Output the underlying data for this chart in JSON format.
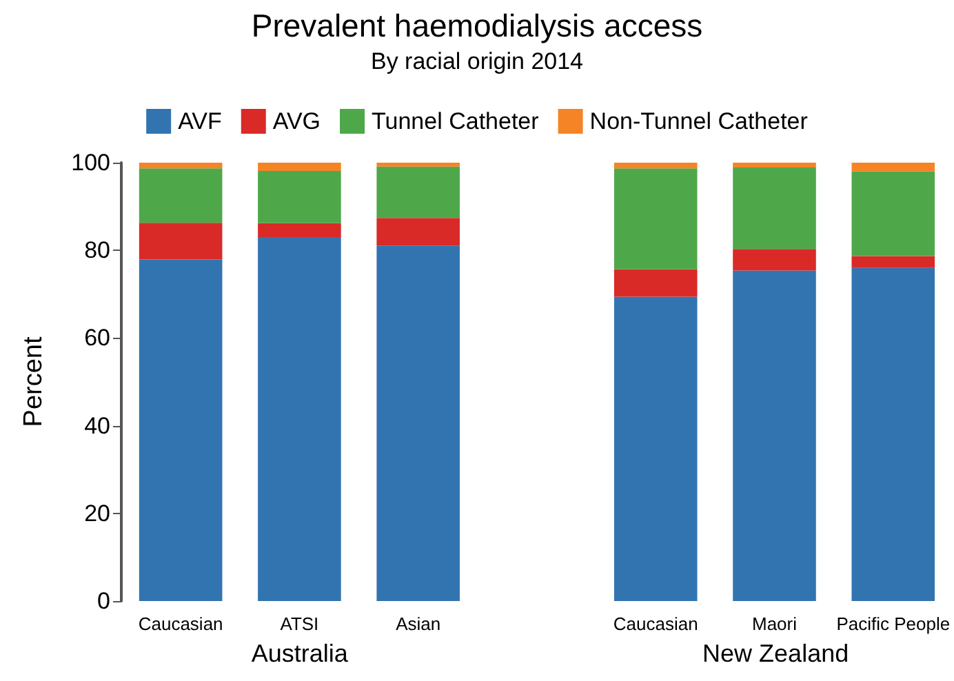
{
  "chart_data": {
    "type": "bar",
    "title": "Prevalent haemodialysis access",
    "subtitle": "By racial origin 2014",
    "ylabel": "Percent",
    "categories": [
      "Caucasian",
      "ATSI",
      "Asian",
      null,
      "Caucasian",
      "Maori",
      "Pacific People"
    ],
    "stacked": true,
    "legend": "top",
    "grid": false,
    "ylim": [
      0,
      100
    ],
    "yticks": [
      0,
      20,
      40,
      60,
      80,
      100
    ],
    "annotations": [
      "Australia",
      "New Zealand"
    ],
    "series": [
      {
        "name": "AVF",
        "color": "#3274b0",
        "values": [
          77.9,
          83.0,
          81.1,
          null,
          69.4,
          75.4,
          76.0
        ]
      },
      {
        "name": "AVG",
        "color": "#d92a28",
        "values": [
          8.4,
          3.2,
          6.3,
          null,
          6.3,
          4.9,
          2.7
        ]
      },
      {
        "name": "Tunnel Catheter",
        "color": "#4ea84a",
        "values": [
          12.4,
          11.9,
          11.7,
          null,
          23.0,
          18.6,
          19.3
        ]
      },
      {
        "name": "Non-Tunnel Catheter",
        "color": "#f58426",
        "values": [
          1.3,
          1.9,
          0.9,
          null,
          1.3,
          1.1,
          2.0
        ]
      }
    ]
  }
}
